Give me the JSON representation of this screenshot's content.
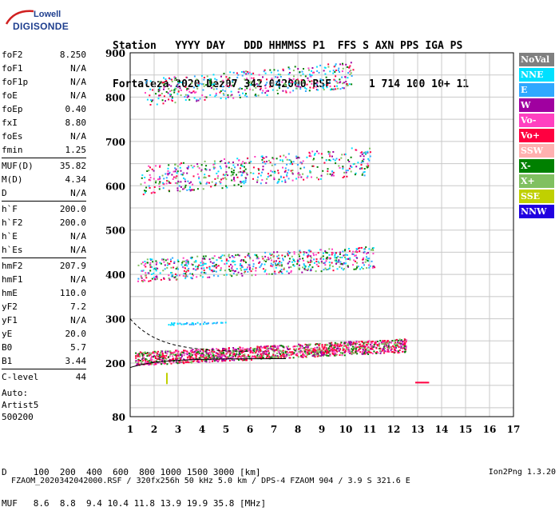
{
  "logo": {
    "line1": "Lowell",
    "line2": "DIGISONDE"
  },
  "header": {
    "row1": "Station   YYYY DAY   DDD HHMMSS P1  FFS S AXN PPS IGA PS",
    "row2": "Fortaleza 2020 Dez07 342 042000 RSF      1 714 100 10+ 11"
  },
  "params": [
    {
      "k": "foF2",
      "v": "8.250"
    },
    {
      "k": "foF1",
      "v": "N/A"
    },
    {
      "k": "foF1p",
      "v": "N/A"
    },
    {
      "k": "foE",
      "v": "N/A"
    },
    {
      "k": "foEp",
      "v": "0.40"
    },
    {
      "k": "fxI",
      "v": "8.80"
    },
    {
      "k": "foEs",
      "v": "N/A"
    },
    {
      "k": "fmin",
      "v": "1.25"
    },
    {
      "k": "MUF(D)",
      "v": "35.82",
      "sep": true
    },
    {
      "k": "M(D)",
      "v": "4.34"
    },
    {
      "k": "D",
      "v": "N/A"
    },
    {
      "k": "h`F",
      "v": "200.0",
      "sep": true
    },
    {
      "k": "h`F2",
      "v": "200.0"
    },
    {
      "k": "h`E",
      "v": "N/A"
    },
    {
      "k": "h`Es",
      "v": "N/A"
    },
    {
      "k": "hmF2",
      "v": "207.9",
      "sep": true
    },
    {
      "k": "hmF1",
      "v": "N/A"
    },
    {
      "k": "hmE",
      "v": "110.0"
    },
    {
      "k": "yF2",
      "v": "7.2"
    },
    {
      "k": "yF1",
      "v": "N/A"
    },
    {
      "k": "yE",
      "v": "20.0"
    },
    {
      "k": "B0",
      "v": "5.7"
    },
    {
      "k": "B1",
      "v": "3.44"
    },
    {
      "k": "C-level",
      "v": "44",
      "sep": true
    }
  ],
  "auto": {
    "line1": "Auto:",
    "line2": "Artist5",
    "line3": "500200"
  },
  "legend": [
    {
      "label": "NoVal",
      "color": "#808080"
    },
    {
      "label": "NNE",
      "color": "#00e0ff"
    },
    {
      "label": "E",
      "color": "#2fa8ff"
    },
    {
      "label": "W",
      "color": "#a000a0"
    },
    {
      "label": "Vo-",
      "color": "#ff40c0"
    },
    {
      "label": "Vo+",
      "color": "#ff0040"
    },
    {
      "label": "SSW",
      "color": "#ffb0b0"
    },
    {
      "label": "X-",
      "color": "#008000"
    },
    {
      "label": "X+",
      "color": "#80c060"
    },
    {
      "label": "SSE",
      "color": "#c0d000"
    },
    {
      "label": "NNW",
      "color": "#2000e0"
    }
  ],
  "axes": {
    "x_ticks": [
      "1",
      "2",
      "3",
      "4",
      "5",
      "6",
      "7",
      "8",
      "9",
      "10",
      "11",
      "12",
      "13",
      "14",
      "15",
      "16",
      "17"
    ],
    "y_ticks": [
      "80",
      "200",
      "300",
      "400",
      "500",
      "600",
      "700",
      "800",
      "900"
    ]
  },
  "table": {
    "row1": "D     100  200  400  600  800 1000 1500 3000 [km]",
    "row2": "MUF   8.6  8.8  9.4 10.4 11.8 13.9 19.9 35.8 [MHz]"
  },
  "footer": {
    "text": "FZAOM_2020342042000.RSF / 320fx256h 50 kHz 5.0 km / DPS-4 FZAOM 904 / 3.9 S 321.6 E",
    "version": "Ion2Png 1.3.20"
  }
}
